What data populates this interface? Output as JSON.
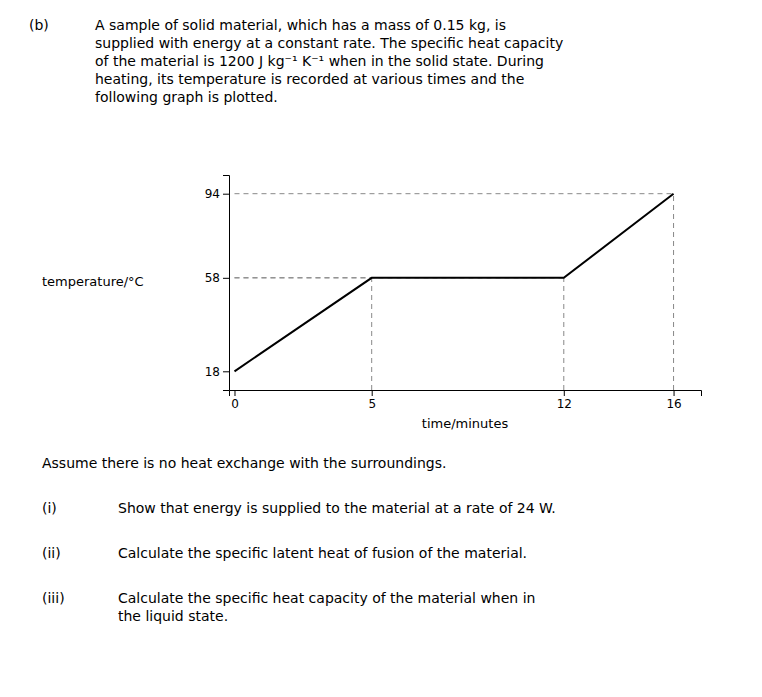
{
  "chart_data": {
    "type": "line",
    "x": [
      0,
      5,
      12,
      16
    ],
    "values": [
      18,
      58,
      58,
      94
    ],
    "xlabel": "time/minutes",
    "ylabel": "temperature/°C",
    "xlim": [
      -0.2,
      17.0
    ],
    "ylim": [
      10,
      102
    ],
    "xticks": [
      0,
      5,
      12,
      16
    ],
    "yticks": [
      18,
      58,
      94
    ],
    "color": "#000000",
    "grid": false,
    "annotations": [
      "(b)",
      "A sample of solid material, which has a mass of 0.15 kg, is\nsupplied with energy at a constant rate. The specific heat capacity\nof the material is 1200 J kg⁻¹ K⁻¹ when in the solid state. During\nheating, its temperature is recorded at various times and the\nfollowing graph is plotted.",
      "Assume there is no heat exchange with the surroundings.",
      "(i)",
      "Show that energy is supplied to the material at a rate of 24 W.",
      "(ii)",
      "Calculate the specific latent heat of fusion of the material.",
      "(iii)",
      "Calculate the specific heat capacity of the material when in\nthe liquid state."
    ]
  }
}
